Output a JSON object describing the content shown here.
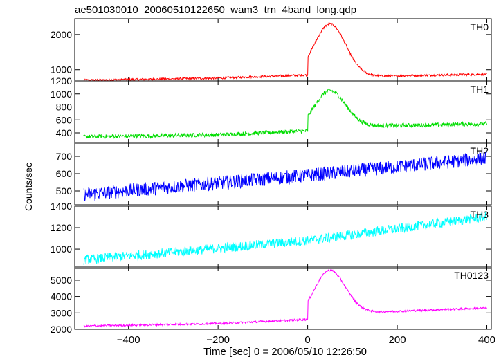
{
  "title": "ae501030010_20060510122650_wam3_trn_4band_long.qdp",
  "ylabel": "Counts/sec",
  "xlabel": "Time [sec] 0 = 2006/05/10 12:26:50",
  "chart_data": [
    {
      "type": "line",
      "name": "TH0",
      "color": "#ff0000",
      "xlim": [
        -520,
        410
      ],
      "ylim": [
        680,
        2450
      ],
      "yticks": [
        1000,
        2000
      ],
      "xticks": [
        -400,
        -200,
        0,
        200,
        400
      ],
      "baseline": [
        [
          -500,
          700
        ],
        [
          -200,
          760
        ],
        [
          0,
          850
        ]
      ],
      "peak": {
        "x": 50,
        "y": 2300,
        "w": 35
      },
      "post_level": [
        [
          100,
          800
        ],
        [
          400,
          870
        ]
      ],
      "noise": 30
    },
    {
      "type": "line",
      "name": "TH1",
      "color": "#00dd00",
      "xlim": [
        -520,
        410
      ],
      "ylim": [
        240,
        1200
      ],
      "yticks": [
        400,
        600,
        800,
        1000,
        1200
      ],
      "xticks": [
        -400,
        -200,
        0,
        200,
        400
      ],
      "baseline": [
        [
          -500,
          340
        ],
        [
          -200,
          370
        ],
        [
          0,
          430
        ]
      ],
      "peak": {
        "x": 50,
        "y": 1050,
        "w": 35
      },
      "post_level": [
        [
          100,
          500
        ],
        [
          400,
          540
        ]
      ],
      "noise": 30
    },
    {
      "type": "line",
      "name": "TH2",
      "color": "#0000ff",
      "xlim": [
        -520,
        410
      ],
      "ylim": [
        420,
        780
      ],
      "yticks": [
        500,
        600,
        700
      ],
      "xticks": [
        -400,
        -200,
        0,
        200,
        400
      ],
      "baseline": [
        [
          -500,
          480
        ],
        [
          0,
          590
        ],
        [
          400,
          690
        ]
      ],
      "noise": 40
    },
    {
      "type": "line",
      "name": "TH3",
      "color": "#00ffff",
      "xlim": [
        -520,
        410
      ],
      "ylim": [
        820,
        1400
      ],
      "yticks": [
        1000,
        1200,
        1400
      ],
      "xticks": [
        -400,
        -200,
        0,
        200,
        400
      ],
      "baseline": [
        [
          -500,
          900
        ],
        [
          0,
          1080
        ],
        [
          400,
          1300
        ]
      ],
      "noise": 45
    },
    {
      "type": "line",
      "name": "TH0123",
      "color": "#ff00ff",
      "xlim": [
        -520,
        410
      ],
      "ylim": [
        2000,
        5800
      ],
      "yticks": [
        2000,
        3000,
        4000,
        5000
      ],
      "xticks": [
        -400,
        -200,
        0,
        200,
        400
      ],
      "baseline": [
        [
          -500,
          2200
        ],
        [
          -200,
          2350
        ],
        [
          0,
          2600
        ]
      ],
      "peak": {
        "x": 50,
        "y": 5600,
        "w": 35
      },
      "post_level": [
        [
          100,
          3000
        ],
        [
          400,
          3300
        ]
      ],
      "noise": 60
    }
  ]
}
